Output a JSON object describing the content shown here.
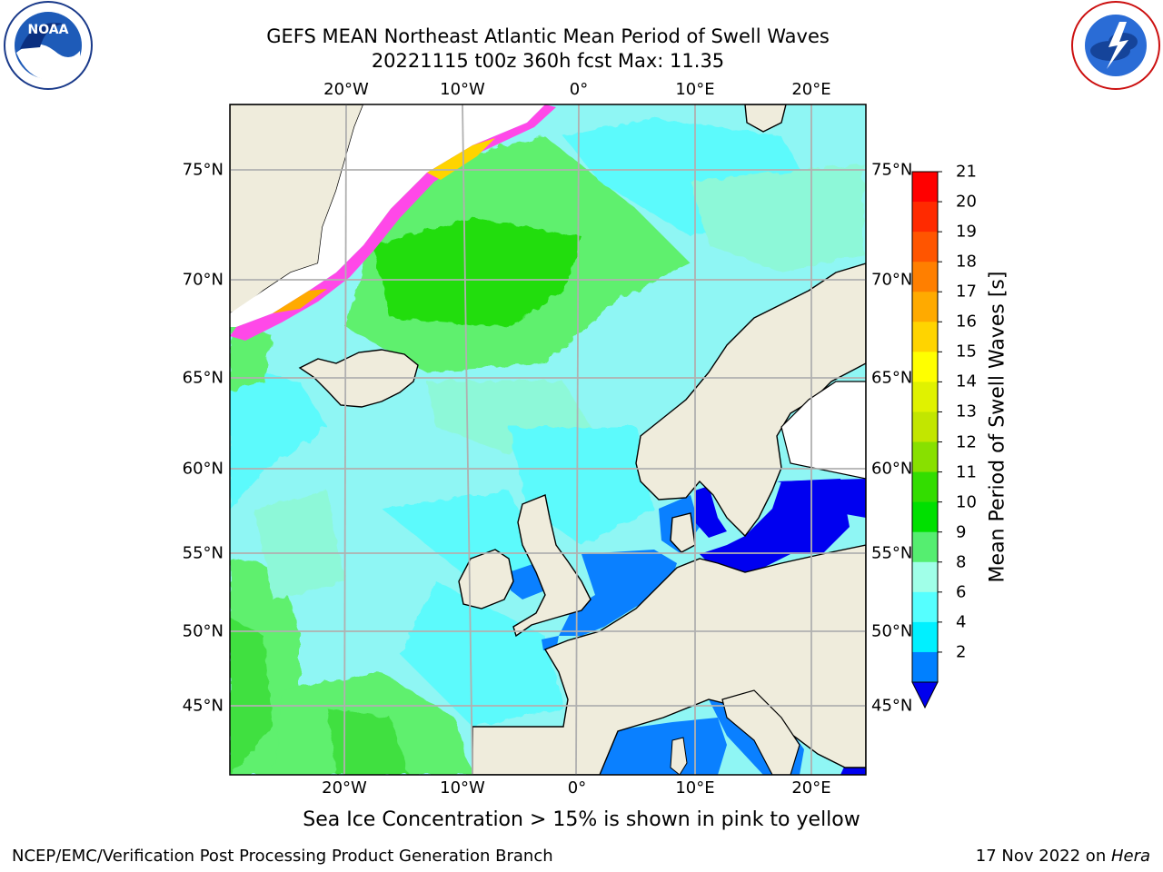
{
  "header": {
    "title_line1": "GEFS MEAN Northeast Atlantic Mean Period of Swell Waves",
    "title_line2": "20221115 t00z 360h fcst   Max: 11.35"
  },
  "logos": {
    "left": "NOAA",
    "left_ring_text": "NATIONAL OCEANIC AND ATMOSPHERIC ADMINISTRATION · U.S. DEPARTMENT OF COMMERCE",
    "right_ring_text": "NATIONAL WEATHER SERVICE"
  },
  "map": {
    "lon_labels": [
      "20°W",
      "10°W",
      "0°",
      "10°E",
      "20°E"
    ],
    "lat_labels": [
      "75°N",
      "70°N",
      "65°N",
      "60°N",
      "55°N",
      "50°N",
      "45°N"
    ],
    "colors": {
      "land": "#efecdc",
      "ice_white": "#ffffff",
      "grid": "#b0b0b0",
      "coast": "#000000"
    }
  },
  "colorbar": {
    "label": "Mean Period of Swell Waves [s]",
    "ticks": [
      "21",
      "20",
      "19",
      "18",
      "17",
      "16",
      "15",
      "14",
      "13",
      "12",
      "11",
      "10",
      "9",
      "8",
      "6",
      "4",
      "2"
    ],
    "colors": [
      "#ff0000",
      "#ff2a00",
      "#ff5500",
      "#ff7f00",
      "#ffaa00",
      "#ffd400",
      "#ffff00",
      "#e0f200",
      "#c2e600",
      "#88e000",
      "#33dd00",
      "#00e000",
      "#55ee70",
      "#a0ffe8",
      "#55ffff",
      "#00f0ff",
      "#0080ff",
      "#0000ee"
    ]
  },
  "chart_data": {
    "type": "heatmap",
    "title": "GEFS MEAN Northeast Atlantic Mean Period of Swell Waves",
    "subtitle": "20221115 t00z 360h fcst   Max: 11.35",
    "colorbar_label": "Mean Period of Swell Waves [s]",
    "color_levels": [
      2,
      4,
      6,
      8,
      9,
      10,
      11,
      12,
      13,
      14,
      15,
      16,
      17,
      18,
      19,
      20,
      21
    ],
    "max_value": 11.35,
    "extent": {
      "lon": [
        -30,
        25
      ],
      "lat": [
        41,
        78
      ]
    }
  },
  "notes": {
    "sea_ice": "Sea Ice Concentration > 15% is shown in pink to yellow"
  },
  "footer": {
    "left": "NCEP/EMC/Verification Post Processing Product Generation Branch",
    "right_prefix": "17 Nov 2022 on ",
    "right_host": "Hera"
  }
}
